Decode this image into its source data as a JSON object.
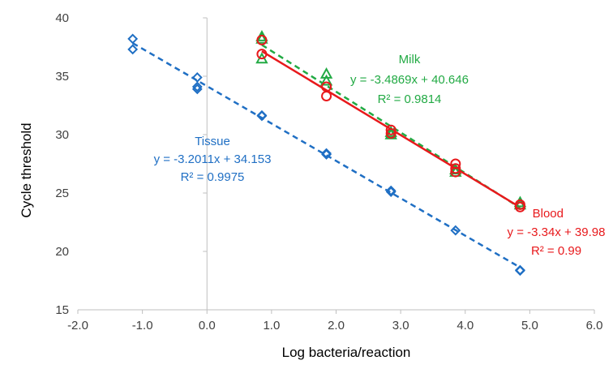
{
  "chart_data": {
    "type": "scatter",
    "title": "",
    "xlabel": "Log bacteria/reaction",
    "ylabel": "Cycle threshold",
    "xlim": [
      -2.0,
      6.0
    ],
    "ylim": [
      15,
      40
    ],
    "x_ticks": [
      "-2.0",
      "-1.0",
      "0.0",
      "1.0",
      "2.0",
      "3.0",
      "4.0",
      "5.0",
      "6.0"
    ],
    "y_ticks": [
      "15",
      "20",
      "25",
      "30",
      "35",
      "40"
    ],
    "grid": false,
    "legend": "none",
    "series": [
      {
        "name": "Tissue",
        "color": "#1f6fc4",
        "marker": "diamond",
        "line_style": "dashed",
        "points": [
          [
            -1.15,
            38.2
          ],
          [
            -1.15,
            37.3
          ],
          [
            -0.15,
            34.9
          ],
          [
            -0.15,
            34.1
          ],
          [
            -0.15,
            33.9
          ],
          [
            0.85,
            31.65
          ],
          [
            0.85,
            31.6
          ],
          [
            1.85,
            28.4
          ],
          [
            1.85,
            28.3
          ],
          [
            2.85,
            25.2
          ],
          [
            2.85,
            25.1
          ],
          [
            3.85,
            21.8
          ],
          [
            4.85,
            18.4
          ],
          [
            4.85,
            18.35
          ]
        ],
        "fit": {
          "slope": -3.2011,
          "intercept": 34.153,
          "x_range": [
            -1.15,
            4.85
          ]
        },
        "equation": "y = -3.2011x + 34.153",
        "r2": "R² = 0.9975"
      },
      {
        "name": "Milk",
        "color": "#22aa44",
        "marker": "triangle",
        "line_style": "dashed",
        "points": [
          [
            0.85,
            38.4
          ],
          [
            0.85,
            38.2
          ],
          [
            0.85,
            36.5
          ],
          [
            1.85,
            35.2
          ],
          [
            1.85,
            34.6
          ],
          [
            2.85,
            30.0
          ],
          [
            2.85,
            30.2
          ],
          [
            3.85,
            26.8
          ],
          [
            3.85,
            27.0
          ],
          [
            4.85,
            24.2
          ],
          [
            4.85,
            24.0
          ]
        ],
        "fit": {
          "slope": -3.4869,
          "intercept": 40.646,
          "x_range": [
            0.85,
            4.85
          ]
        },
        "equation": "y = -3.4869x + 40.646",
        "r2": "R² = 0.9814"
      },
      {
        "name": "Blood",
        "color": "#e8191c",
        "marker": "circle",
        "line_style": "solid",
        "points": [
          [
            0.85,
            38.1
          ],
          [
            0.85,
            36.9
          ],
          [
            1.85,
            34.1
          ],
          [
            1.85,
            33.3
          ],
          [
            2.85,
            30.4
          ],
          [
            2.85,
            30.1
          ],
          [
            3.85,
            27.5
          ],
          [
            3.85,
            27.1
          ],
          [
            3.85,
            26.8
          ],
          [
            4.85,
            24.0
          ],
          [
            4.85,
            23.8
          ]
        ],
        "fit": {
          "slope": -3.34,
          "intercept": 39.98,
          "x_range": [
            0.85,
            4.85
          ]
        },
        "equation": "y = -3.34x + 39.98",
        "r2": "R² = 0.99"
      }
    ]
  }
}
